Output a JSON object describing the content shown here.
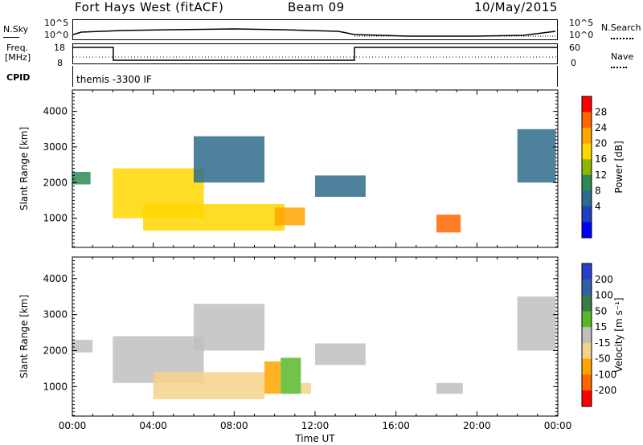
{
  "header": {
    "title": "Fort Hays West (fitACF)",
    "beam": "Beam 09",
    "date": "10/May/2015"
  },
  "strip": {
    "nsky_label": "N.Sky",
    "nsky_ticks": [
      "10^5",
      "10^0"
    ],
    "nsearch_label": "N.Search",
    "freq_label": "Freq.",
    "freq_unit": "[MHz]",
    "freq_ticks": [
      "18",
      "8"
    ],
    "nave_label": "Nave",
    "nave_ticks": [
      "60",
      "0"
    ],
    "cpid_label": "CPID",
    "cpid_text": "themis -3300 IF"
  },
  "power_colorbar": {
    "label": "Power [dB]",
    "ticks": [
      "28",
      "24",
      "20",
      "16",
      "12",
      "8",
      "4"
    ],
    "colors": [
      "#ff0000",
      "#ff6600",
      "#ffa500",
      "#ffd700",
      "#8db600",
      "#2e8b57",
      "#2e6b8b",
      "#1f3fbf",
      "#0000ff"
    ]
  },
  "velocity_colorbar": {
    "label": "Velocity [m s⁻¹]",
    "ticks": [
      "200",
      "100",
      "50",
      "15",
      "-15",
      "-50",
      "-100",
      "-200"
    ],
    "colors": [
      "#2a3fc9",
      "#3060a8",
      "#3a7d44",
      "#59b82a",
      "#bfbfbf",
      "#f5d28a",
      "#ffa500",
      "#ff6600",
      "#ff0000"
    ]
  },
  "chart_data": [
    {
      "type": "heatmap",
      "title": "Power",
      "xlabel": "Time UT",
      "ylabel": "Slant Range [km]",
      "xlim": [
        "00:00",
        "24:00"
      ],
      "ylim": [
        180,
        4600
      ],
      "x_ticks": [
        "00:00",
        "04:00",
        "08:00",
        "12:00",
        "16:00",
        "20:00",
        "00:00"
      ],
      "y_ticks": [
        1000,
        2000,
        3000,
        4000
      ],
      "echo_regions": [
        {
          "t_start": 0.0,
          "t_end": 0.9,
          "range_start": 1950,
          "range_end": 2300,
          "power_db": 14
        },
        {
          "t_start": 2.0,
          "t_end": 6.5,
          "range_start": 1000,
          "range_end": 2400,
          "power_db": 20
        },
        {
          "t_start": 3.5,
          "t_end": 10.5,
          "range_start": 650,
          "range_end": 1400,
          "power_db": 18
        },
        {
          "t_start": 6.0,
          "t_end": 9.5,
          "range_start": 2000,
          "range_end": 3300,
          "power_db": 8
        },
        {
          "t_start": 10.0,
          "t_end": 11.5,
          "range_start": 800,
          "range_end": 1300,
          "power_db": 22
        },
        {
          "t_start": 12.0,
          "t_end": 14.5,
          "range_start": 1600,
          "range_end": 2200,
          "power_db": 10
        },
        {
          "t_start": 18.0,
          "t_end": 19.2,
          "range_start": 600,
          "range_end": 1100,
          "power_db": 26
        },
        {
          "t_start": 22.0,
          "t_end": 23.9,
          "range_start": 2000,
          "range_end": 3500,
          "power_db": 10
        }
      ]
    },
    {
      "type": "heatmap",
      "title": "Velocity",
      "xlabel": "Time UT",
      "ylabel": "Slant Range [km]",
      "xlim": [
        "00:00",
        "24:00"
      ],
      "ylim": [
        180,
        4600
      ],
      "x_ticks": [
        "00:00",
        "04:00",
        "08:00",
        "12:00",
        "16:00",
        "20:00",
        "00:00"
      ],
      "y_ticks": [
        1000,
        2000,
        3000,
        4000
      ],
      "echo_regions": [
        {
          "t_start": 0.0,
          "t_end": 1.0,
          "range_start": 1950,
          "range_end": 2300,
          "velocity": 0
        },
        {
          "t_start": 2.0,
          "t_end": 6.5,
          "range_start": 1100,
          "range_end": 2400,
          "velocity": 0
        },
        {
          "t_start": 4.0,
          "t_end": 9.5,
          "range_start": 650,
          "range_end": 1400,
          "velocity": -60
        },
        {
          "t_start": 9.5,
          "t_end": 10.3,
          "range_start": 800,
          "range_end": 1700,
          "velocity": -120
        },
        {
          "t_start": 10.3,
          "t_end": 11.3,
          "range_start": 800,
          "range_end": 1800,
          "velocity": 40
        },
        {
          "t_start": 11.3,
          "t_end": 11.8,
          "range_start": 800,
          "range_end": 1100,
          "velocity": -60
        },
        {
          "t_start": 6.0,
          "t_end": 9.5,
          "range_start": 2000,
          "range_end": 3300,
          "velocity": 0
        },
        {
          "t_start": 12.0,
          "t_end": 14.5,
          "range_start": 1600,
          "range_end": 2200,
          "velocity": 0
        },
        {
          "t_start": 18.0,
          "t_end": 19.3,
          "range_start": 800,
          "range_end": 1100,
          "velocity": 0
        },
        {
          "t_start": 22.0,
          "t_end": 23.9,
          "range_start": 2000,
          "range_end": 3500,
          "velocity": 0
        }
      ]
    }
  ]
}
